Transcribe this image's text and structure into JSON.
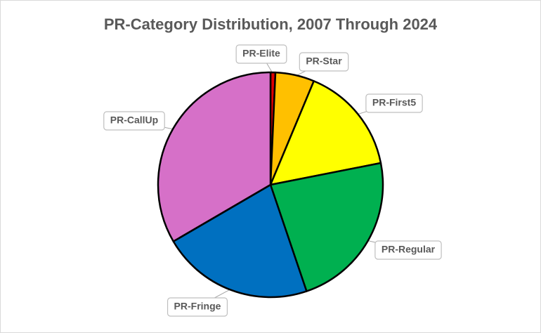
{
  "chart_data": {
    "type": "pie",
    "title": "PR-Category Distribution, 2007 Through 2024",
    "categories": [
      "PR-Elite",
      "PR-Star",
      "PR-First5",
      "PR-Regular",
      "PR-Fringe",
      "PR-CallUp"
    ],
    "values": [
      0.7,
      5.6,
      15.6,
      22.9,
      21.8,
      33.4
    ],
    "colors": [
      "#e00000",
      "#ffc000",
      "#ffff00",
      "#00b050",
      "#0070c0",
      "#d670c8"
    ]
  }
}
